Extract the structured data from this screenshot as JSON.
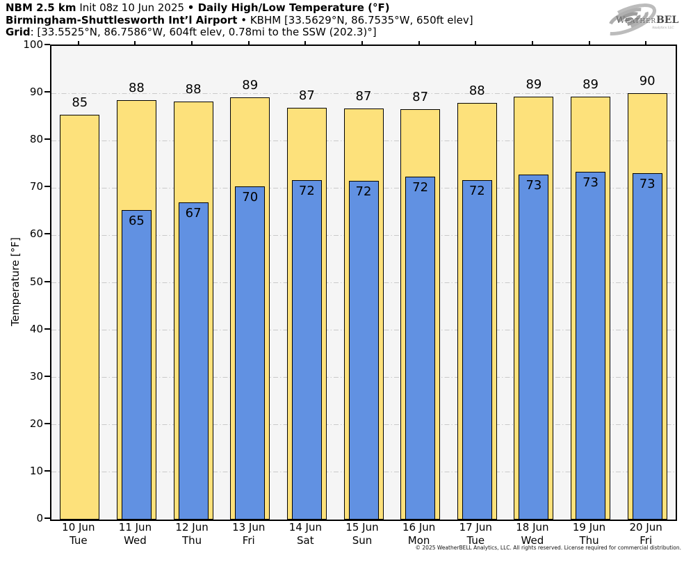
{
  "header": {
    "line1_bold": "NBM 2.5 km",
    "line1_normal": " Init 08z 10 Jun 2025 ",
    "line1_bold2": "• Daily High/Low Temperature (°F)",
    "line2_bold": "Birmingham-Shuttlesworth Int’l Airport",
    "line2_normal": " • KBHM [33.5629°N, 86.7535°W, 650ft elev]",
    "line3_bold": "Grid",
    "line3_normal": ": [33.5525°N, 86.7586°W, 604ft elev, 0.78mi to the SSW (202.3)°]"
  },
  "logo": {
    "brand_w": "W",
    "brand_eather": "EATHER",
    "brand_bell": "BELL",
    "sub": "Analytics LLC"
  },
  "footer": {
    "copyright": "© 2025 WeatherBELL Analytics, LLC. All rights reserved. License required for commercial distribution."
  },
  "colors": {
    "high_bar": "#fde17b",
    "low_bar": "#6191e2",
    "bar_border": "#000000",
    "plot_bg": "#f5f5f5",
    "grid": "#c9c9c9"
  },
  "chart_data": {
    "type": "bar",
    "title": "Daily High/Low Temperature (°F)",
    "ylabel": "Temperature [°F]",
    "ylim": [
      0,
      100
    ],
    "yticks": [
      0,
      10,
      20,
      30,
      40,
      50,
      60,
      70,
      80,
      90,
      100
    ],
    "grid": "horizontal dash-dot at 10..90",
    "legend_position": "none",
    "categories": [
      {
        "date": "10 Jun",
        "dow": "Tue"
      },
      {
        "date": "11 Jun",
        "dow": "Wed"
      },
      {
        "date": "12 Jun",
        "dow": "Thu"
      },
      {
        "date": "13 Jun",
        "dow": "Fri"
      },
      {
        "date": "14 Jun",
        "dow": "Sat"
      },
      {
        "date": "15 Jun",
        "dow": "Sun"
      },
      {
        "date": "16 Jun",
        "dow": "Mon"
      },
      {
        "date": "17 Jun",
        "dow": "Tue"
      },
      {
        "date": "18 Jun",
        "dow": "Wed"
      },
      {
        "date": "19 Jun",
        "dow": "Thu"
      },
      {
        "date": "20 Jun",
        "dow": "Fri"
      }
    ],
    "series": [
      {
        "name": "Daily High",
        "color": "#fde17b",
        "values": [
          85,
          88,
          88,
          89,
          87,
          87,
          87,
          88,
          89,
          89,
          90
        ],
        "bar_extent": [
          85.5,
          88.5,
          88.2,
          89.2,
          87.0,
          86.8,
          86.6,
          88.0,
          89.3,
          89.3,
          90.0
        ]
      },
      {
        "name": "Daily Low",
        "color": "#6191e2",
        "values": [
          null,
          65,
          67,
          70,
          72,
          72,
          72,
          72,
          73,
          73,
          73
        ],
        "bar_extent": [
          null,
          65.3,
          67.0,
          70.3,
          71.6,
          71.5,
          72.4,
          71.7,
          72.9,
          73.4,
          73.1
        ]
      }
    ]
  }
}
